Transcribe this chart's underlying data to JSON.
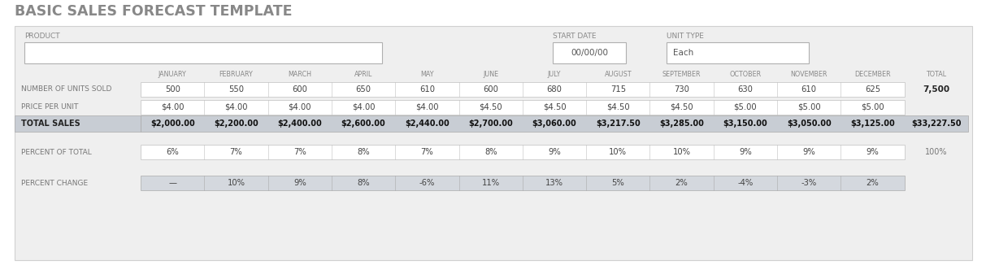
{
  "title": "BASIC SALES FORECAST TEMPLATE",
  "bg_color": "#ffffff",
  "panel_bg": "#efefef",
  "white": "#ffffff",
  "total_sales_bg": "#c8cdd4",
  "percent_change_bg": "#d4d8de",
  "product_label": "PRODUCT",
  "start_date_label": "START DATE",
  "start_date_value": "00/00/00",
  "unit_type_label": "UNIT TYPE",
  "unit_type_value": "Each",
  "months": [
    "JANUARY",
    "FEBRUARY",
    "MARCH",
    "APRIL",
    "MAY",
    "JUNE",
    "JULY",
    "AUGUST",
    "SEPTEMBER",
    "OCTOBER",
    "NOVEMBER",
    "DECEMBER",
    "TOTAL"
  ],
  "row_labels": [
    "NUMBER OF UNITS SOLD",
    "PRICE PER UNIT",
    "TOTAL SALES",
    "PERCENT OF TOTAL",
    "PERCENT CHANGE"
  ],
  "units_sold": [
    "500",
    "550",
    "600",
    "650",
    "610",
    "600",
    "680",
    "715",
    "730",
    "630",
    "610",
    "625",
    "7,500"
  ],
  "price_per_unit": [
    "$4.00",
    "$4.00",
    "$4.00",
    "$4.00",
    "$4.00",
    "$4.50",
    "$4.50",
    "$4.50",
    "$4.50",
    "$5.00",
    "$5.00",
    "$5.00",
    ""
  ],
  "total_sales": [
    "$2,000.00",
    "$2,200.00",
    "$2,400.00",
    "$2,600.00",
    "$2,440.00",
    "$2,700.00",
    "$3,060.00",
    "$3,217.50",
    "$3,285.00",
    "$3,150.00",
    "$3,050.00",
    "$3,125.00",
    "$33,227.50"
  ],
  "percent_of_total": [
    "6%",
    "7%",
    "7%",
    "8%",
    "7%",
    "8%",
    "9%",
    "10%",
    "10%",
    "9%",
    "9%",
    "9%",
    "100%"
  ],
  "percent_change": [
    "—",
    "10%",
    "9%",
    "8%",
    "-6%",
    "11%",
    "13%",
    "5%",
    "2%",
    "-4%",
    "-3%",
    "2%",
    ""
  ]
}
